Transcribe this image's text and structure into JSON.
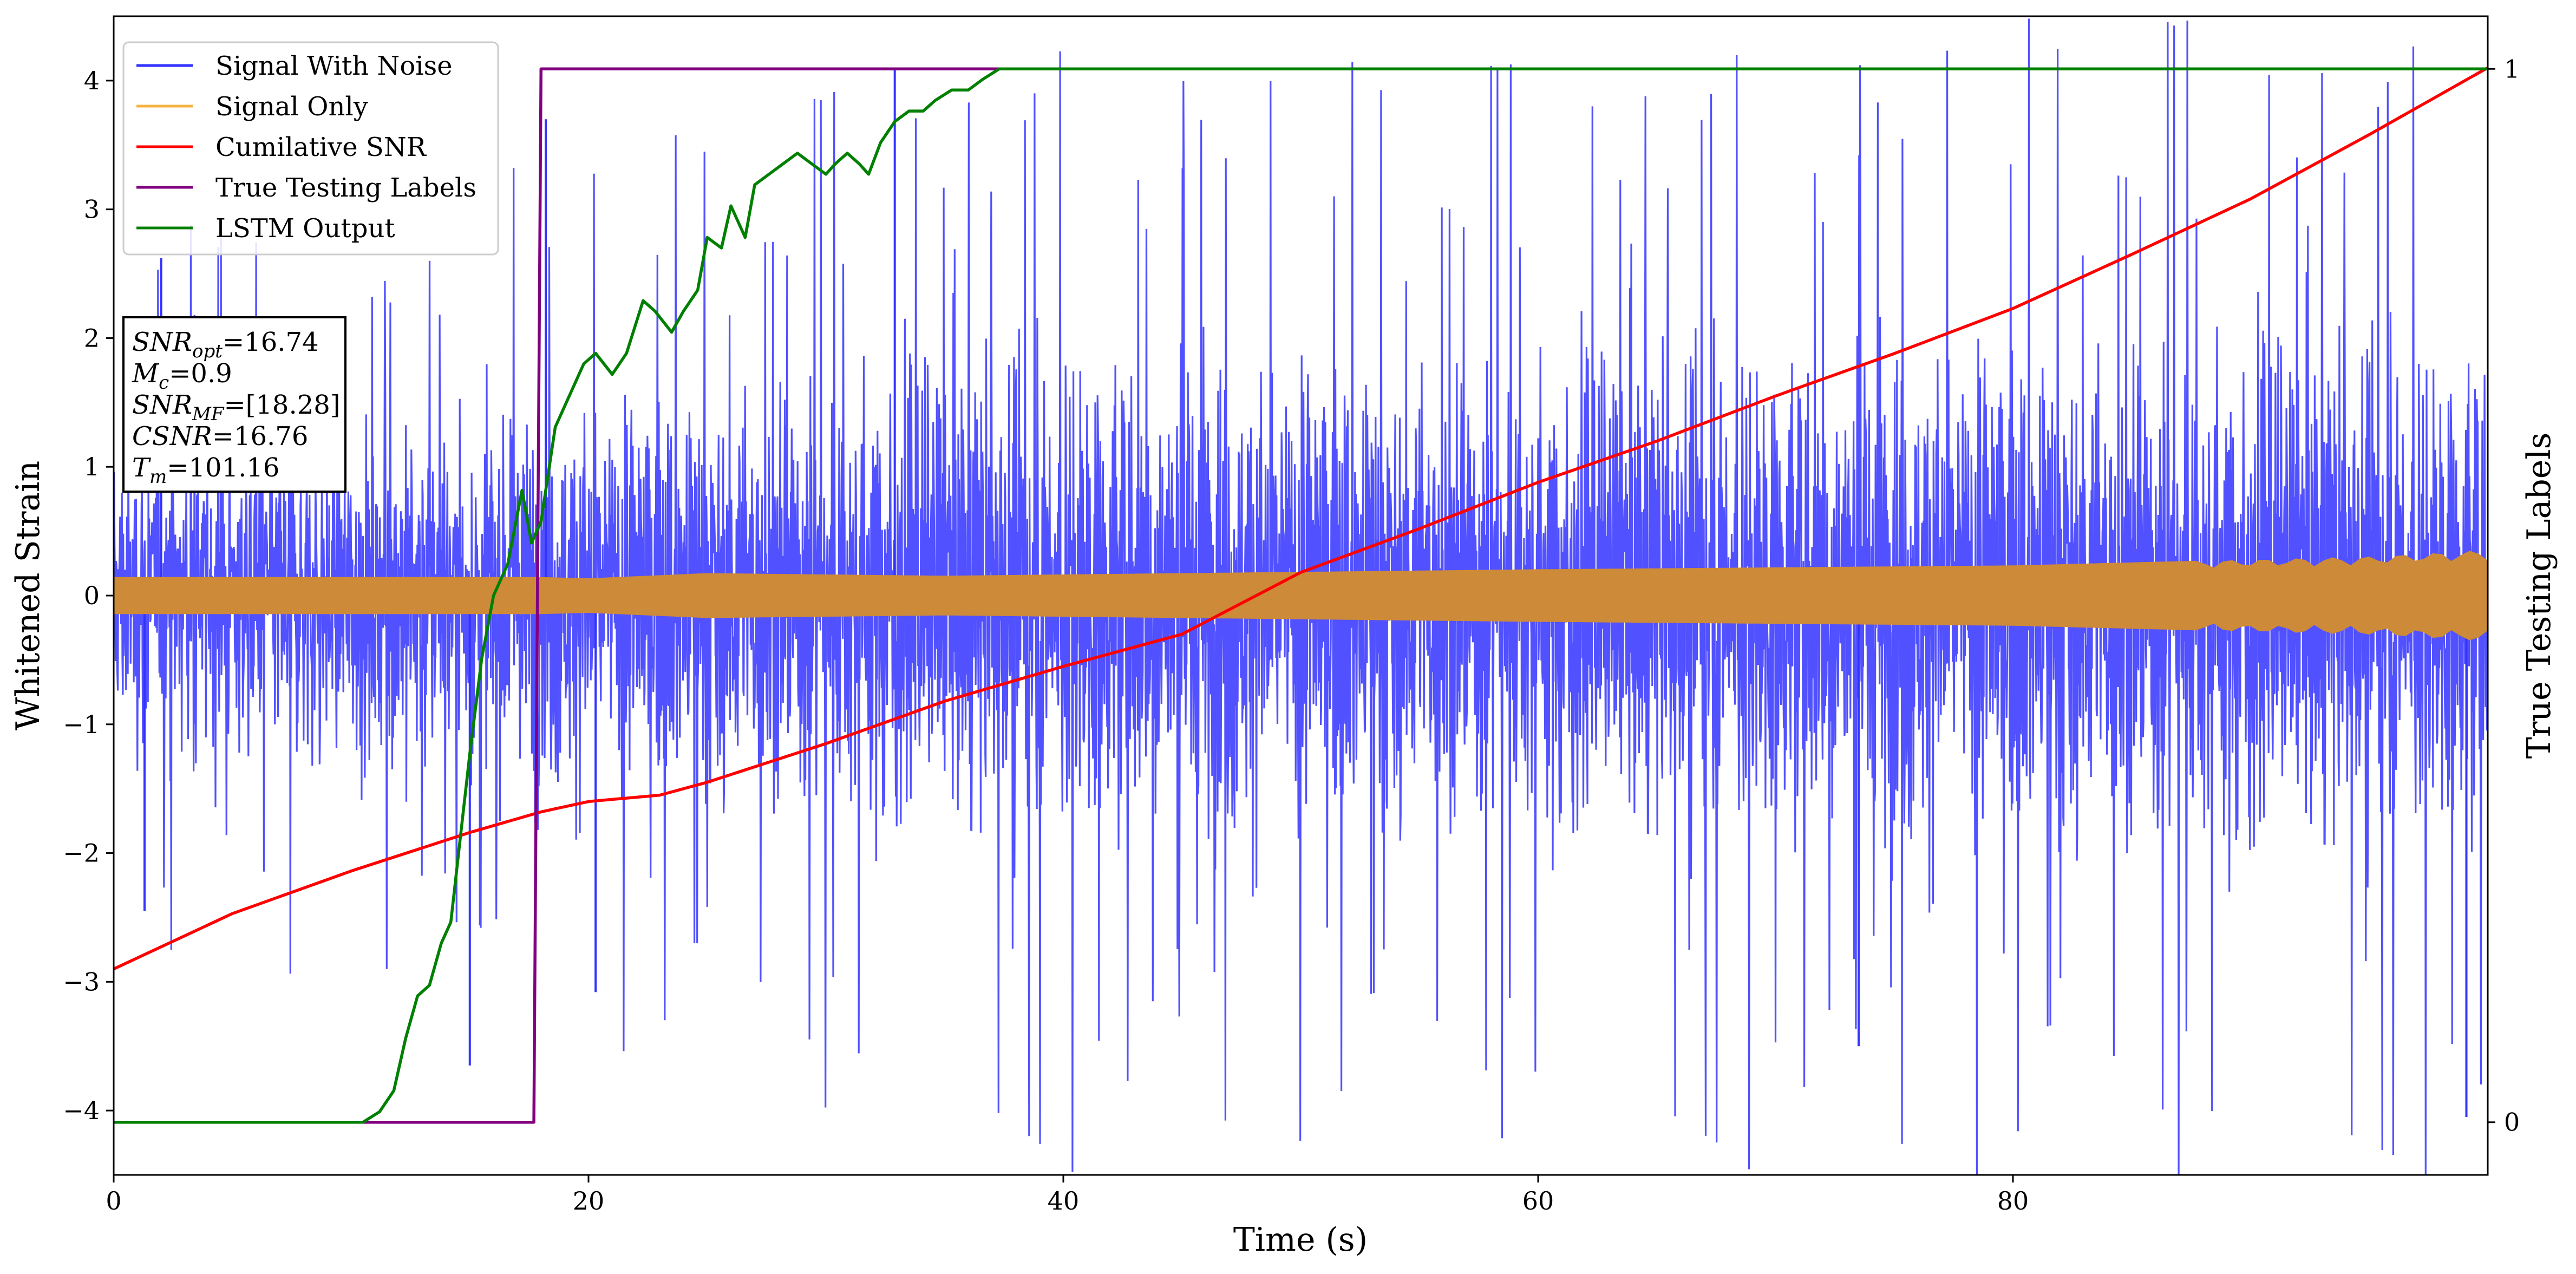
{
  "chart_data": {
    "type": "line",
    "xlabel": "Time (s)",
    "ylabel": "Whitened Strain",
    "y2label": "True Testing Labels",
    "xlim": [
      0,
      100
    ],
    "ylim": [
      -4.5,
      4.5
    ],
    "y2lim": [
      -0.05,
      1.05
    ],
    "x_ticks": [
      "0",
      "20",
      "40",
      "60",
      "80"
    ],
    "y_ticks": [
      "−4",
      "−3",
      "−2",
      "−1",
      "0",
      "1",
      "2",
      "3",
      "4"
    ],
    "y2_ticks": [
      "0",
      "1"
    ],
    "legend_position": "top-left",
    "series": [
      {
        "name": "Signal With Noise",
        "color": "#3333ff",
        "axis": "left",
        "kind": "noise",
        "envelope": [
          [
            0,
            1.2
          ],
          [
            20,
            1.6
          ],
          [
            40,
            2.0
          ],
          [
            60,
            1.9
          ],
          [
            80,
            2.1
          ],
          [
            100,
            2.0
          ]
        ],
        "spikes": [
          [
            1.3,
            -2.45
          ],
          [
            2.0,
            2.62
          ],
          [
            15.0,
            -3.65
          ],
          [
            18.2,
            3.7
          ],
          [
            20.3,
            -3.08
          ],
          [
            32.9,
            4.1
          ],
          [
            73.5,
            -3.5
          ],
          [
            99.1,
            -4.05
          ]
        ]
      },
      {
        "name": "Signal Only",
        "color": "#cd8a38",
        "axis": "left",
        "kind": "band",
        "amplitude": [
          [
            0,
            0.14
          ],
          [
            18,
            0.14
          ],
          [
            20,
            0.13
          ],
          [
            25,
            0.17
          ],
          [
            35,
            0.15
          ],
          [
            60,
            0.2
          ],
          [
            80,
            0.23
          ],
          [
            95,
            0.3
          ],
          [
            100,
            0.35
          ]
        ]
      },
      {
        "name": "Cumilative SNR",
        "color": "#ff0000",
        "axis": "left",
        "x": [
          0,
          5,
          10,
          15,
          18,
          20,
          23,
          25,
          30,
          35,
          40,
          45,
          50,
          55,
          60,
          65,
          70,
          75,
          80,
          85,
          90,
          95,
          100
        ],
        "y": [
          -2.9,
          -2.47,
          -2.14,
          -1.84,
          -1.68,
          -1.6,
          -1.55,
          -1.45,
          -1.15,
          -0.82,
          -0.55,
          -0.3,
          0.18,
          0.52,
          0.88,
          1.2,
          1.55,
          1.88,
          2.23,
          2.65,
          3.08,
          3.58,
          4.1
        ]
      },
      {
        "name": "True Testing Labels",
        "color": "#800080",
        "axis": "right",
        "x": [
          0,
          17.7,
          18.0,
          100
        ],
        "y": [
          0,
          0,
          1,
          1
        ]
      },
      {
        "name": "LSTM Output",
        "color": "#008000",
        "axis": "right",
        "x": [
          0,
          10.5,
          11.2,
          11.8,
          12.3,
          12.8,
          13.3,
          13.8,
          14.2,
          14.6,
          15.0,
          15.5,
          16.0,
          16.6,
          17.2,
          17.6,
          18.0,
          18.6,
          19.2,
          19.8,
          20.3,
          21.0,
          21.6,
          22.3,
          22.8,
          23.5,
          24.0,
          24.6,
          25.0,
          25.6,
          26.0,
          26.6,
          27.0,
          27.6,
          28.2,
          28.8,
          29.4,
          30.0,
          30.4,
          30.9,
          31.4,
          31.8,
          32.3,
          32.9,
          33.5,
          34.1,
          34.6,
          35.3,
          36.0,
          36.6,
          37.3,
          38.0,
          38.6,
          39.3,
          40.0,
          41.0,
          100
        ],
        "y": [
          0,
          0,
          0.01,
          0.03,
          0.08,
          0.12,
          0.13,
          0.17,
          0.19,
          0.27,
          0.35,
          0.44,
          0.5,
          0.53,
          0.6,
          0.55,
          0.57,
          0.66,
          0.69,
          0.72,
          0.73,
          0.71,
          0.73,
          0.78,
          0.77,
          0.75,
          0.77,
          0.79,
          0.84,
          0.83,
          0.87,
          0.84,
          0.89,
          0.9,
          0.91,
          0.92,
          0.91,
          0.9,
          0.91,
          0.92,
          0.91,
          0.9,
          0.93,
          0.95,
          0.96,
          0.96,
          0.97,
          0.98,
          0.98,
          0.99,
          1.0,
          1.0,
          1.0,
          1.0,
          1.0,
          1.0,
          1.0
        ]
      }
    ]
  },
  "legend": {
    "items": [
      {
        "label": "Signal With Noise",
        "color": "#3333ff"
      },
      {
        "label": "Signal Only",
        "color": "#f5b440"
      },
      {
        "label": "Cumilative SNR",
        "color": "#ff0000"
      },
      {
        "label": "True Testing Labels",
        "color": "#800080"
      },
      {
        "label": "LSTM Output",
        "color": "#008000"
      }
    ]
  },
  "info_box": {
    "lines": [
      {
        "base": "SNR",
        "sub": "opt",
        "value": "=16.74"
      },
      {
        "base": "M",
        "sub": "c",
        "value": "=0.9"
      },
      {
        "base": "SNR",
        "sub": "MF",
        "value": "=[18.28]"
      },
      {
        "base": "CSNR",
        "sub": "",
        "value": "=16.76"
      },
      {
        "base": "T",
        "sub": "m",
        "value": "=101.16"
      }
    ]
  }
}
